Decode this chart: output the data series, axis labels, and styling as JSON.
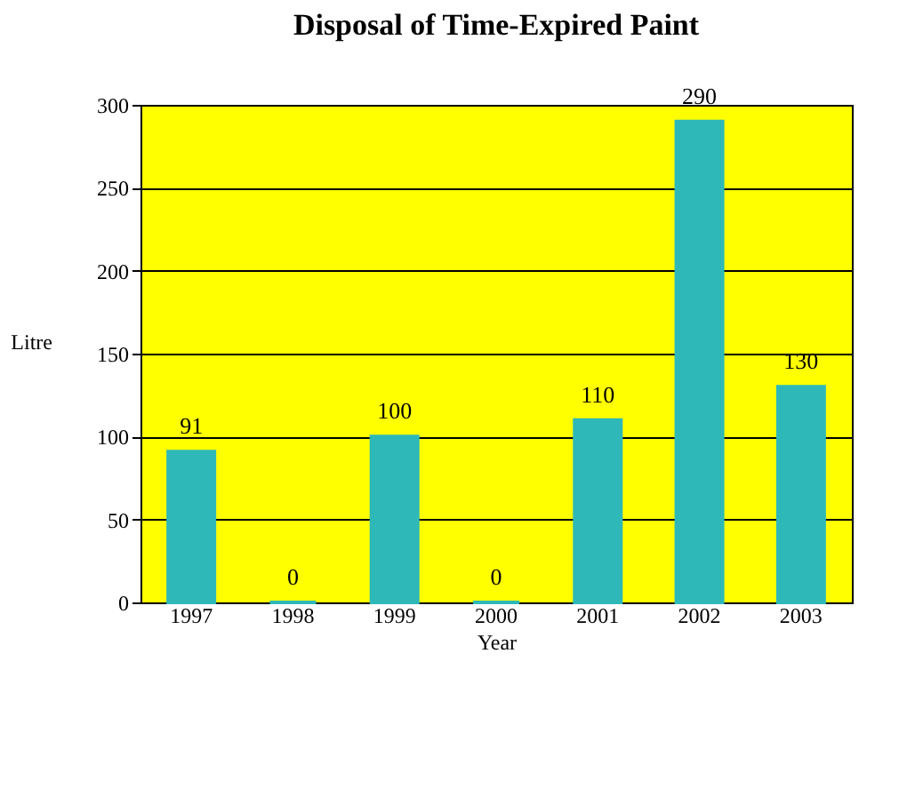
{
  "chart_data": {
    "type": "bar",
    "title": "Disposal of Time-Expired Paint",
    "xlabel": "Year",
    "ylabel": "Litre",
    "categories": [
      "1997",
      "1998",
      "1999",
      "2000",
      "2001",
      "2002",
      "2003"
    ],
    "values": [
      91,
      0,
      100,
      0,
      110,
      290,
      130
    ],
    "color": "#2eb8b8",
    "ylim": [
      0,
      300
    ],
    "yticks": [
      0,
      50,
      100,
      150,
      200,
      250,
      300
    ],
    "grid": "y",
    "data_labels": true
  }
}
